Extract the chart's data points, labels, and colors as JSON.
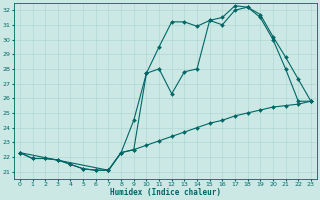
{
  "xlabel": "Humidex (Indice chaleur)",
  "bg_color": "#cce8e4",
  "grid_color": "#b0d8d4",
  "line_color": "#006666",
  "xlim": [
    -0.5,
    23.5
  ],
  "ylim": [
    20.5,
    32.5
  ],
  "xticks": [
    0,
    1,
    2,
    3,
    4,
    5,
    6,
    7,
    8,
    9,
    10,
    11,
    12,
    13,
    14,
    15,
    16,
    17,
    18,
    19,
    20,
    21,
    22,
    23
  ],
  "yticks": [
    21,
    22,
    23,
    24,
    25,
    26,
    27,
    28,
    29,
    30,
    31,
    32
  ],
  "curve1_x": [
    0,
    1,
    2,
    3,
    4,
    5,
    6,
    7,
    8,
    9,
    10,
    11,
    12,
    13,
    14,
    15,
    16,
    17,
    18,
    19,
    20,
    21,
    22,
    23
  ],
  "curve1_y": [
    22.3,
    21.9,
    21.9,
    21.8,
    21.5,
    21.2,
    21.1,
    21.1,
    22.3,
    22.5,
    22.8,
    23.1,
    23.4,
    23.7,
    24.0,
    24.3,
    24.5,
    24.8,
    25.0,
    25.2,
    25.4,
    25.5,
    25.6,
    25.8
  ],
  "curve2_x": [
    0,
    1,
    2,
    3,
    4,
    5,
    6,
    7,
    8,
    9,
    10,
    11,
    12,
    13,
    14,
    15,
    16,
    17,
    18,
    19,
    20,
    21,
    22,
    23
  ],
  "curve2_y": [
    22.3,
    21.9,
    21.9,
    21.8,
    21.5,
    21.2,
    21.1,
    21.1,
    22.3,
    24.5,
    27.7,
    29.5,
    31.2,
    31.2,
    30.9,
    31.3,
    31.5,
    32.3,
    32.2,
    31.7,
    30.2,
    28.8,
    27.3,
    25.8
  ],
  "curve3_x": [
    0,
    7,
    8,
    9,
    10,
    11,
    12,
    13,
    14,
    15,
    16,
    17,
    18,
    19,
    20,
    21,
    22,
    23
  ],
  "curve3_y": [
    22.3,
    21.1,
    22.3,
    22.5,
    27.7,
    28.0,
    26.3,
    27.8,
    28.0,
    31.3,
    31.0,
    32.0,
    32.2,
    31.5,
    30.0,
    28.0,
    25.8,
    25.8
  ]
}
